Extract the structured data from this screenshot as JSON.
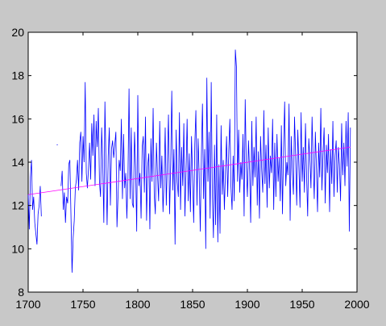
{
  "chart_data": {
    "type": "line",
    "xlim": [
      1700,
      2000
    ],
    "xticks": [
      1700,
      1750,
      1800,
      1850,
      1900,
      1950,
      2000
    ],
    "ylim": [
      8,
      20
    ],
    "yticks": [
      8,
      10,
      12,
      14,
      16,
      18,
      20
    ],
    "series": [
      {
        "color": "#0000ff",
        "x": [
          1700,
          1701,
          1702,
          1703,
          1704,
          1705,
          1706,
          1707,
          1708,
          1709,
          1710,
          1711,
          1712,
          1713,
          1714,
          1715,
          1716,
          1717,
          1718,
          1719,
          1720,
          1721,
          1722,
          1723,
          1724,
          1725,
          1726,
          1727,
          1728,
          1729,
          1730,
          1731,
          1732,
          1733,
          1734,
          1735,
          1736,
          1737,
          1738,
          1739,
          1740,
          1741,
          1742,
          1743,
          1744,
          1745,
          1746,
          1747,
          1748,
          1749,
          1750,
          1751,
          1752,
          1753,
          1754,
          1755,
          1756,
          1757,
          1758,
          1759,
          1760,
          1761,
          1762,
          1763,
          1764,
          1765,
          1766,
          1767,
          1768,
          1769,
          1770,
          1771,
          1772,
          1773,
          1774,
          1775,
          1776,
          1777,
          1778,
          1779,
          1780,
          1781,
          1782,
          1783,
          1784,
          1785,
          1786,
          1787,
          1788,
          1789,
          1790,
          1791,
          1792,
          1793,
          1794,
          1795,
          1796,
          1797,
          1798,
          1799,
          1800,
          1801,
          1802,
          1803,
          1804,
          1805,
          1806,
          1807,
          1808,
          1809,
          1810,
          1811,
          1812,
          1813,
          1814,
          1815,
          1816,
          1817,
          1818,
          1819,
          1820,
          1821,
          1822,
          1823,
          1824,
          1825,
          1826,
          1827,
          1828,
          1829,
          1830,
          1831,
          1832,
          1833,
          1834,
          1835,
          1836,
          1837,
          1838,
          1839,
          1840,
          1841,
          1842,
          1843,
          1844,
          1845,
          1846,
          1847,
          1848,
          1849,
          1850,
          1851,
          1852,
          1853,
          1854,
          1855,
          1856,
          1857,
          1858,
          1859,
          1860,
          1861,
          1862,
          1863,
          1864,
          1865,
          1866,
          1867,
          1868,
          1869,
          1870,
          1871,
          1872,
          1873,
          1874,
          1875,
          1876,
          1877,
          1878,
          1879,
          1880,
          1881,
          1882,
          1883,
          1884,
          1885,
          1886,
          1887,
          1888,
          1889,
          1890,
          1891,
          1892,
          1893,
          1894,
          1895,
          1896,
          1897,
          1898,
          1899,
          1900,
          1901,
          1902,
          1903,
          1904,
          1905,
          1906,
          1907,
          1908,
          1909,
          1910,
          1911,
          1912,
          1913,
          1914,
          1915,
          1916,
          1917,
          1918,
          1919,
          1920,
          1921,
          1922,
          1923,
          1924,
          1925,
          1926,
          1927,
          1928,
          1929,
          1930,
          1931,
          1932,
          1933,
          1934,
          1935,
          1936,
          1937,
          1938,
          1939,
          1940,
          1941,
          1942,
          1943,
          1944,
          1945,
          1946,
          1947,
          1948,
          1949,
          1950,
          1951,
          1952,
          1953,
          1954,
          1955,
          1956,
          1957,
          1958,
          1959,
          1960,
          1961,
          1962,
          1963,
          1964,
          1965,
          1966,
          1967,
          1968,
          1969,
          1970,
          1971,
          1972,
          1973,
          1974,
          1975,
          1976,
          1977,
          1978,
          1979,
          1980,
          1981,
          1982,
          1983,
          1984,
          1985,
          1986,
          1987,
          1988,
          1989,
          1990,
          1991,
          1992,
          1993,
          1994
        ],
        "values": [
          12.5,
          10.9,
          13.3,
          14.1,
          11.8,
          12.4,
          11.2,
          10.7,
          10.2,
          11.6,
          12.0,
          12.9,
          11.5,
          null,
          null,
          null,
          null,
          null,
          null,
          null,
          null,
          null,
          null,
          null,
          null,
          null,
          14.8,
          14.8,
          null,
          null,
          12.9,
          13.6,
          11.8,
          12.6,
          11.2,
          12.4,
          12.1,
          13.9,
          14.1,
          11.6,
          8.9,
          10.5,
          11.3,
          12.8,
          13.2,
          14.1,
          12.7,
          14.9,
          15.4,
          13.1,
          15.2,
          14.0,
          17.7,
          13.5,
          12.8,
          13.7,
          14.9,
          13.2,
          15.8,
          14.3,
          16.2,
          12.9,
          15.9,
          14.7,
          16.5,
          13.1,
          12.4,
          15.6,
          14.0,
          11.2,
          16.8,
          13.9,
          11.1,
          14.3,
          15.6,
          12.0,
          14.6,
          15.0,
          14.2,
          14.8,
          15.4,
          11.0,
          12.5,
          14.1,
          13.6,
          16.0,
          12.3,
          15.3,
          12.8,
          13.5,
          11.4,
          13.2,
          17.4,
          12.3,
          15.6,
          12.1,
          11.9,
          15.4,
          13.8,
          10.8,
          17.1,
          12.9,
          13.5,
          11.4,
          14.7,
          15.2,
          12.6,
          16.1,
          11.3,
          13.8,
          14.4,
          10.9,
          15.1,
          13.1,
          16.5,
          12.5,
          11.6,
          14.9,
          13.4,
          12.2,
          15.9,
          12.8,
          14.3,
          11.7,
          13.2,
          15.6,
          12.0,
          14.1,
          16.2,
          11.6,
          13.9,
          17.3,
          12.7,
          14.6,
          10.2,
          15.5,
          13.1,
          12.4,
          16.3,
          11.8,
          14.7,
          12.9,
          15.8,
          11.5,
          13.6,
          16.0,
          12.2,
          14.4,
          11.7,
          15.2,
          13.3,
          11.2,
          14.8,
          16.4,
          12.0,
          15.1,
          13.5,
          10.8,
          14.2,
          16.7,
          12.3,
          14.6,
          10.0,
          17.9,
          13.1,
          15.4,
          11.4,
          17.7,
          12.6,
          10.5,
          14.8,
          11.1,
          16.2,
          10.3,
          13.9,
          10.7,
          15.7,
          12.5,
          14.1,
          11.8,
          13.6,
          15.2,
          12.4,
          14.5,
          16.0,
          12.9,
          11.8,
          14.3,
          12.2,
          19.2,
          18.4,
          13.1,
          15.5,
          12.6,
          14.0,
          13.2,
          15.3,
          11.5,
          16.9,
          13.8,
          12.4,
          15.0,
          13.6,
          11.2,
          15.9,
          12.9,
          14.7,
          13.3,
          16.1,
          12.0,
          14.5,
          11.4,
          15.2,
          13.7,
          12.6,
          16.4,
          13.0,
          14.8,
          11.9,
          15.6,
          12.8,
          14.3,
          13.5,
          16.0,
          11.8,
          14.9,
          12.4,
          15.3,
          13.1,
          14.2,
          12.2,
          15.7,
          11.6,
          14.6,
          16.8,
          12.9,
          14.0,
          13.4,
          16.7,
          11.3,
          15.2,
          13.6,
          12.5,
          16.1,
          14.3,
          12.0,
          15.5,
          13.8,
          11.9,
          16.3,
          13.1,
          14.7,
          12.6,
          15.8,
          13.4,
          11.5,
          15.1,
          14.2,
          12.8,
          16.1,
          14.0,
          12.3,
          15.4,
          13.7,
          11.7,
          14.9,
          13.3,
          16.5,
          12.7,
          14.4,
          15.6,
          12.1,
          14.8,
          13.5,
          15.3,
          11.7,
          14.6,
          13.0,
          15.9,
          12.4,
          14.3,
          15.0,
          12.6,
          14.7,
          13.9,
          12.2,
          15.8,
          13.4,
          14.9,
          12.9,
          15.9,
          13.8,
          16.3,
          10.8,
          15.6
        ]
      },
      {
        "color": "#ff00ff",
        "x": [
          1700,
          1994
        ],
        "values": [
          12.5,
          14.7
        ]
      }
    ]
  }
}
